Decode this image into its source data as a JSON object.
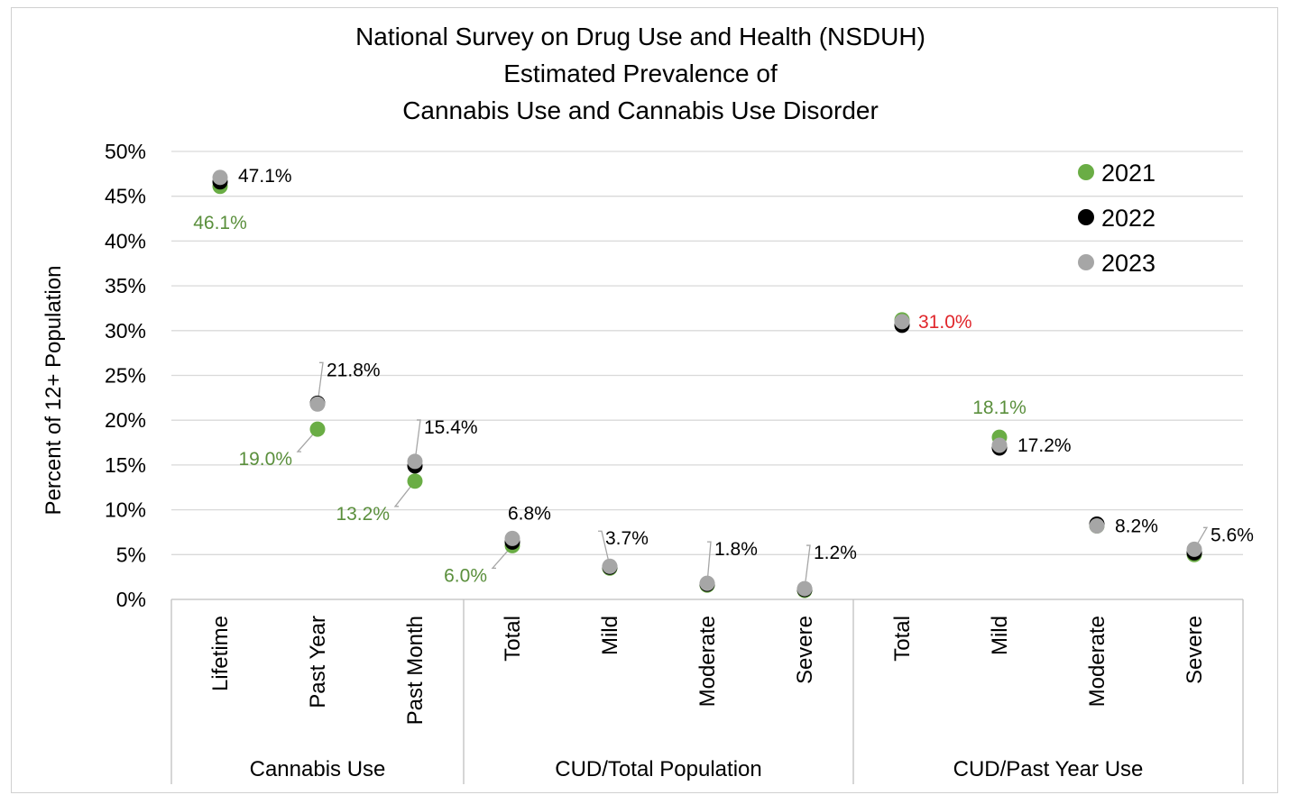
{
  "chart_data": {
    "type": "scatter",
    "title_lines": [
      "National Survey on Drug Use and Health (NSDUH)",
      "Estimated Prevalence of",
      "Cannabis Use and Cannabis Use Disorder"
    ],
    "ylabel": "Percent of 12+ Population",
    "ylim": [
      0,
      50
    ],
    "yticks": [
      "0%",
      "5%",
      "10%",
      "15%",
      "20%",
      "25%",
      "30%",
      "35%",
      "40%",
      "45%",
      "50%"
    ],
    "grid": true,
    "legend_position": "top-right",
    "categories": [
      "Lifetime",
      "Past Year",
      "Past Month",
      "Total",
      "Mild",
      "Moderate",
      "Severe",
      "Total",
      "Mild",
      "Moderate",
      "Severe"
    ],
    "groups": [
      {
        "label": "Cannabis Use",
        "start": 0,
        "end": 2
      },
      {
        "label": "CUD/Total Population",
        "start": 3,
        "end": 6
      },
      {
        "label": "CUD/Past Year Use",
        "start": 7,
        "end": 10
      }
    ],
    "series": [
      {
        "name": "2021",
        "color": "#6aad45",
        "values": [
          46.1,
          19.0,
          13.2,
          6.0,
          3.5,
          1.6,
          1.0,
          31.2,
          18.1,
          8.2,
          5.0
        ]
      },
      {
        "name": "2022",
        "color": "#000000",
        "values": [
          46.6,
          21.9,
          14.9,
          6.4,
          3.6,
          1.7,
          1.1,
          30.6,
          16.9,
          8.4,
          5.2
        ]
      },
      {
        "name": "2023",
        "color": "#a6a6a6",
        "values": [
          47.1,
          21.8,
          15.4,
          6.8,
          3.7,
          1.8,
          1.2,
          31.0,
          17.2,
          8.2,
          5.6
        ]
      }
    ],
    "data_labels": [
      {
        "category": 0,
        "series": "2023",
        "text": "47.1%",
        "color": "#000000"
      },
      {
        "category": 0,
        "series": "2021",
        "text": "46.1%",
        "color": "#5a8f3c"
      },
      {
        "category": 1,
        "series": "2023",
        "text": "21.8%",
        "color": "#000000"
      },
      {
        "category": 1,
        "series": "2021",
        "text": "19.0%",
        "color": "#5a8f3c"
      },
      {
        "category": 2,
        "series": "2023",
        "text": "15.4%",
        "color": "#000000"
      },
      {
        "category": 2,
        "series": "2021",
        "text": "13.2%",
        "color": "#5a8f3c"
      },
      {
        "category": 3,
        "series": "2023",
        "text": "6.8%",
        "color": "#000000"
      },
      {
        "category": 3,
        "series": "2021",
        "text": "6.0%",
        "color": "#5a8f3c"
      },
      {
        "category": 4,
        "series": "2023",
        "text": "3.7%",
        "color": "#000000"
      },
      {
        "category": 5,
        "series": "2023",
        "text": "1.8%",
        "color": "#000000"
      },
      {
        "category": 6,
        "series": "2023",
        "text": "1.2%",
        "color": "#000000"
      },
      {
        "category": 7,
        "series": "2023",
        "text": "31.0%",
        "color": "#e0262b"
      },
      {
        "category": 8,
        "series": "2021",
        "text": "18.1%",
        "color": "#5a8f3c"
      },
      {
        "category": 8,
        "series": "2023",
        "text": "17.2%",
        "color": "#000000"
      },
      {
        "category": 9,
        "series": "2023",
        "text": "8.2%",
        "color": "#000000"
      },
      {
        "category": 10,
        "series": "2023",
        "text": "5.6%",
        "color": "#000000"
      }
    ]
  }
}
